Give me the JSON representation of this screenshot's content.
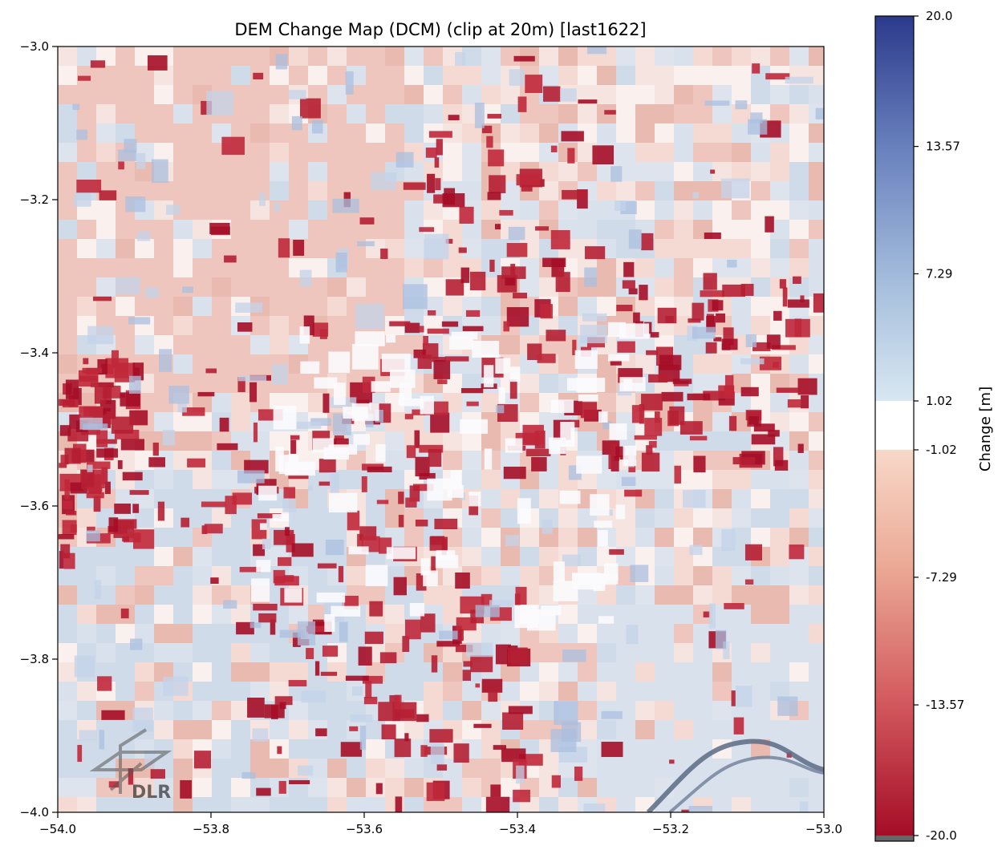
{
  "chart_data": {
    "type": "heatmap",
    "title": "DEM Change Map (DCM) (clip at 20m) [last1622]",
    "x_ticks": [
      -54.0,
      -53.8,
      -53.6,
      -53.4,
      -53.2,
      -53.0
    ],
    "x_tick_labels": [
      "−54.0",
      "−53.8",
      "−53.6",
      "−53.4",
      "−53.2",
      "−53.0"
    ],
    "y_ticks": [
      -3.0,
      -3.2,
      -3.4,
      -3.6,
      -3.8,
      -4.0
    ],
    "y_tick_labels": [
      "−3.0",
      "−3.2",
      "−3.4",
      "−3.6",
      "−3.8",
      "−4.0"
    ],
    "xlim": [
      -54.0,
      -53.0
    ],
    "ylim": [
      -4.0,
      -3.0
    ],
    "grid": false,
    "colorbar": {
      "label": "Change [m]",
      "range": [
        -20.0,
        20.0
      ],
      "ticks": [
        20.0,
        13.57,
        7.29,
        1.02,
        -1.02,
        -7.29,
        -13.57,
        -20.0
      ],
      "tick_labels": [
        "20.0",
        "13.57",
        "7.29",
        "1.02",
        "-1.02",
        "-7.29",
        "-13.57",
        "-20.0"
      ],
      "neutral_band": [
        -1.02,
        1.02
      ],
      "colormap": "RdBu",
      "colors": {
        "max": "#2c3a8c",
        "mid_high": "#c8dcec",
        "neutral": "#ffffff",
        "mid_low": "#f6cdbb",
        "min": "#a50d27"
      }
    },
    "logo": "DLR"
  }
}
